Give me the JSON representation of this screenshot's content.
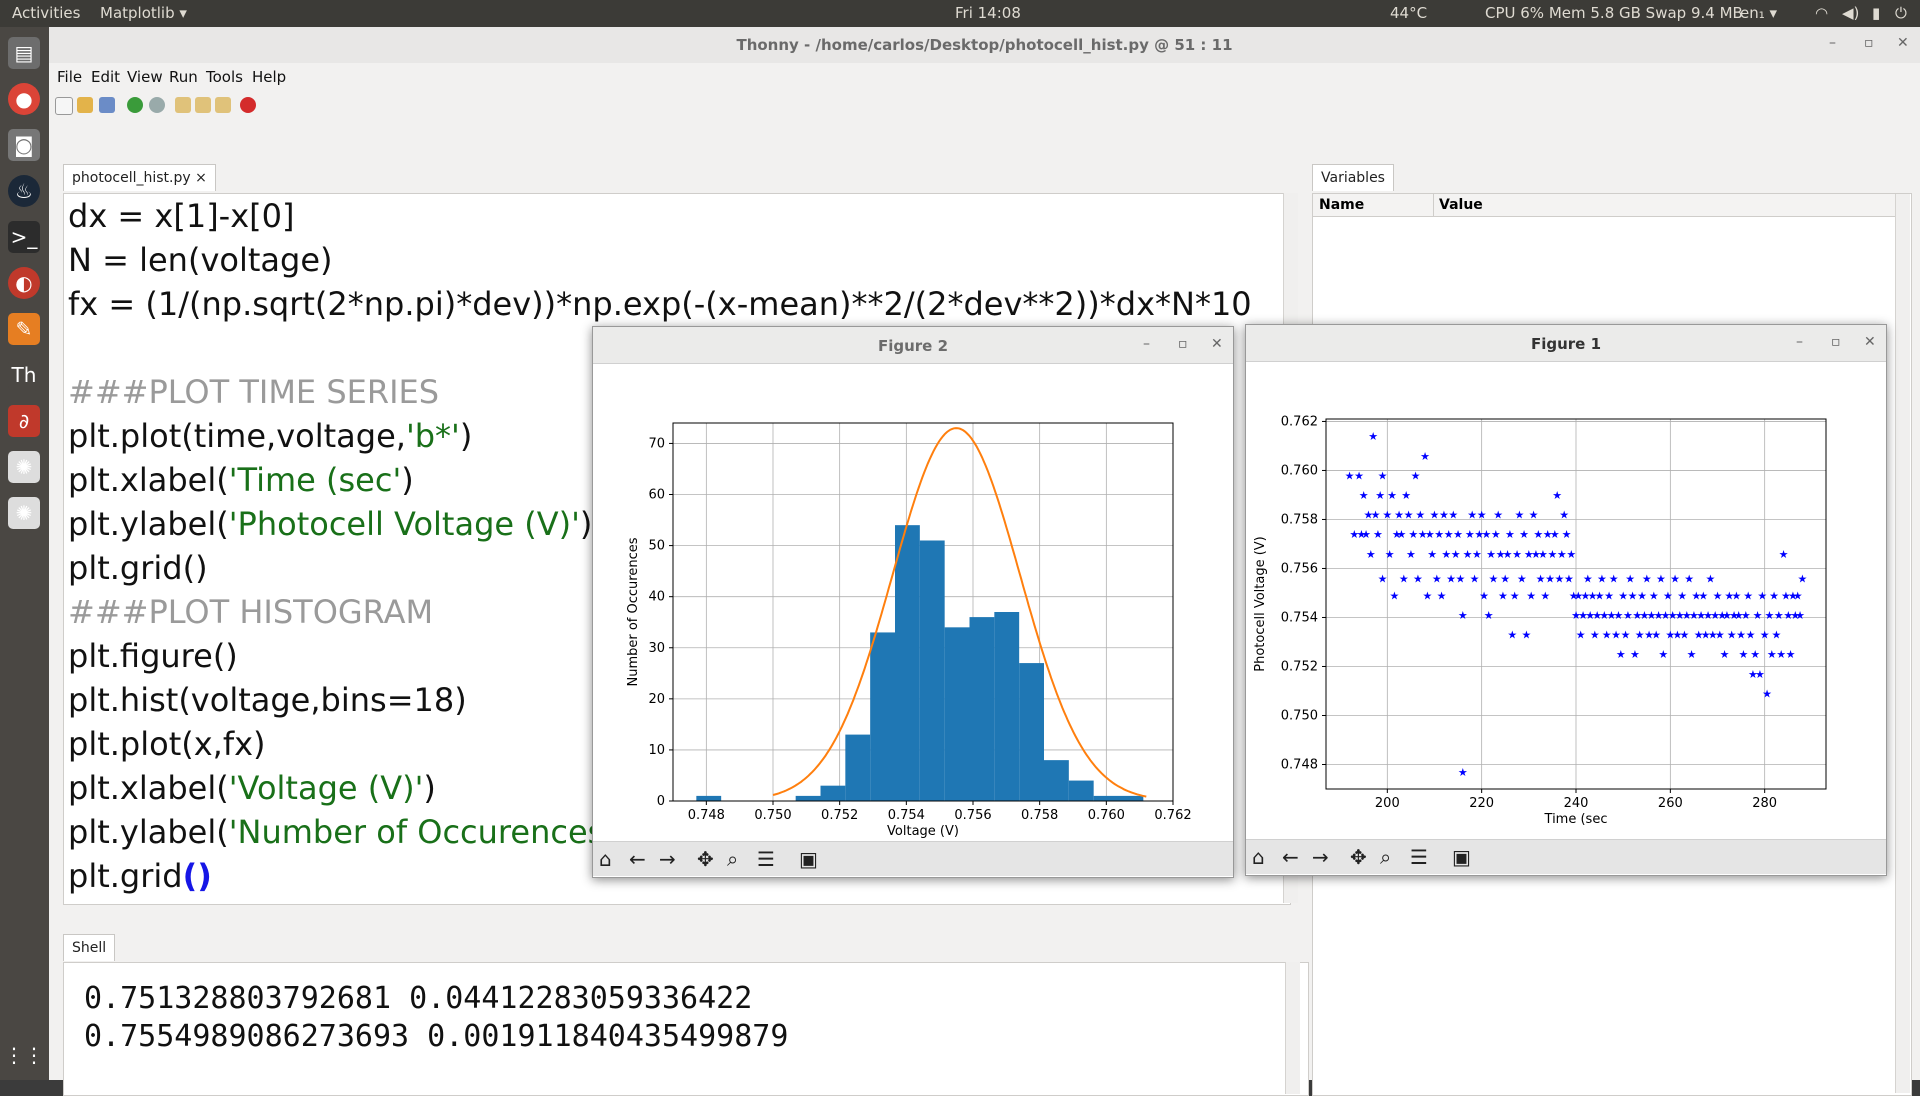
{
  "topbar": {
    "activities": "Activities",
    "app": "Matplotlib ▾",
    "clock": "Fri 14:08",
    "temp": "44°C",
    "stats": "CPU 6% Mem 5.8 GB Swap 9.4 MB",
    "lang": "en₁ ▾"
  },
  "window": {
    "title": "Thonny  -  /home/carlos/Desktop/photocell_hist.py  @  51 : 11"
  },
  "menu": [
    "File",
    "Edit",
    "View",
    "Run",
    "Tools",
    "Help"
  ],
  "editor_tab": "photocell_hist.py ×",
  "code_lines": [
    [
      {
        "t": "dx = x[1]-x[0]"
      }
    ],
    [
      {
        "t": "N = len(voltage)"
      }
    ],
    [
      {
        "t": "fx = (1/(np.sqrt(2*np.pi)*dev))*np.exp(-(x-mean)**2/(2*dev**2))*dx*N*10"
      }
    ],
    [
      {
        "t": " "
      }
    ],
    [
      {
        "t": "###PLOT TIME SERIES",
        "c": "c"
      }
    ],
    [
      {
        "t": "plt.plot(time,voltage,"
      },
      {
        "t": "'b*'",
        "c": "s"
      },
      {
        "t": ")"
      }
    ],
    [
      {
        "t": "plt.xlabel("
      },
      {
        "t": "'Time (sec'",
        "c": "s"
      },
      {
        "t": ")"
      }
    ],
    [
      {
        "t": "plt.ylabel("
      },
      {
        "t": "'Photocell Voltage (V)'",
        "c": "s"
      },
      {
        "t": ")"
      }
    ],
    [
      {
        "t": "plt.grid()"
      }
    ],
    [
      {
        "t": "###PLOT HISTOGRAM",
        "c": "c"
      }
    ],
    [
      {
        "t": "plt.figure()"
      }
    ],
    [
      {
        "t": "plt.hist(voltage,bins=18)"
      }
    ],
    [
      {
        "t": "plt.plot(x,fx)"
      }
    ],
    [
      {
        "t": "plt.xlabel("
      },
      {
        "t": "'Voltage (V)'",
        "c": "s"
      },
      {
        "t": ")"
      }
    ],
    [
      {
        "t": "plt.ylabel("
      },
      {
        "t": "'Number of Occurences'",
        "c": "s"
      },
      {
        "t": ")"
      }
    ],
    [
      {
        "t": "plt.grid"
      },
      {
        "t": "()",
        "c": "b"
      }
    ]
  ],
  "shell": {
    "tab": "Shell",
    "lines": [
      "0.751328803792681 0.04412283059336422",
      "0.7554989086273693 0.001911840435499879"
    ]
  },
  "variables": {
    "tab": "Variables",
    "col_name": "Name",
    "col_value": "Value"
  },
  "figure2": {
    "title": "Figure 2"
  },
  "figure1": {
    "title": "Figure 1"
  },
  "chart_data": [
    {
      "type": "bar",
      "title": "",
      "xlabel": "Voltage (V)",
      "ylabel": "Number of Occurences",
      "xlim": [
        0.747,
        0.762
      ],
      "ylim": [
        0,
        74
      ],
      "xticks": [
        "0.748",
        "0.750",
        "0.752",
        "0.754",
        "0.756",
        "0.758",
        "0.760",
        "0.762"
      ],
      "yticks": [
        "0",
        "10",
        "20",
        "30",
        "40",
        "50",
        "60",
        "70"
      ],
      "grid": true,
      "bin_start": 0.7477,
      "bin_width": 0.000745,
      "counts": [
        1,
        0,
        0,
        0,
        1,
        3,
        13,
        33,
        54,
        51,
        34,
        36,
        37,
        27,
        8,
        4,
        1,
        1
      ],
      "bar_color": "#1f77b4",
      "curve_color": "#ff7f0e",
      "fit": {
        "mean": 0.7554989086273693,
        "std": 0.001911840435499879,
        "peak": 73,
        "x_from": 0.75,
        "x_to": 0.7612
      }
    },
    {
      "type": "scatter",
      "title": "",
      "xlabel": "Time (sec",
      "ylabel": "Photocell Voltage (V)",
      "xlim": [
        187,
        293
      ],
      "ylim": [
        0.747,
        0.7621
      ],
      "xticks": [
        "200",
        "220",
        "240",
        "260",
        "280"
      ],
      "yticks": [
        "0.748",
        "0.750",
        "0.752",
        "0.754",
        "0.756",
        "0.758",
        "0.760",
        "0.762"
      ],
      "grid": true,
      "marker": "★",
      "color": "#0000ff",
      "points": [
        [
          192,
          0.7598
        ],
        [
          193,
          0.7574
        ],
        [
          194,
          0.7598
        ],
        [
          194.5,
          0.7574
        ],
        [
          195,
          0.759
        ],
        [
          195.5,
          0.7574
        ],
        [
          196,
          0.7582
        ],
        [
          196.5,
          0.7566
        ],
        [
          197,
          0.7614
        ],
        [
          197.5,
          0.7582
        ],
        [
          198,
          0.7574
        ],
        [
          198.5,
          0.759
        ],
        [
          199,
          0.7598
        ],
        [
          199,
          0.7556
        ],
        [
          200,
          0.7582
        ],
        [
          200.5,
          0.7566
        ],
        [
          201,
          0.759
        ],
        [
          201.5,
          0.7549
        ],
        [
          202,
          0.7574
        ],
        [
          202.5,
          0.7582
        ],
        [
          203,
          0.7574
        ],
        [
          203.5,
          0.7556
        ],
        [
          204,
          0.759
        ],
        [
          204.5,
          0.7582
        ],
        [
          205,
          0.7566
        ],
        [
          205.5,
          0.7574
        ],
        [
          206,
          0.7598
        ],
        [
          206.5,
          0.7556
        ],
        [
          207,
          0.7582
        ],
        [
          207.5,
          0.7574
        ],
        [
          208,
          0.7606
        ],
        [
          208.5,
          0.7549
        ],
        [
          209,
          0.7574
        ],
        [
          209.5,
          0.7566
        ],
        [
          210,
          0.7582
        ],
        [
          210.5,
          0.7556
        ],
        [
          211,
          0.7574
        ],
        [
          211.5,
          0.7549
        ],
        [
          212,
          0.7582
        ],
        [
          212.5,
          0.7566
        ],
        [
          213,
          0.7574
        ],
        [
          213.5,
          0.7556
        ],
        [
          214,
          0.7582
        ],
        [
          214.5,
          0.7566
        ],
        [
          215,
          0.7574
        ],
        [
          215.5,
          0.7556
        ],
        [
          216,
          0.7541
        ],
        [
          216,
          0.7477
        ],
        [
          217,
          0.7566
        ],
        [
          217.5,
          0.7574
        ],
        [
          218,
          0.7582
        ],
        [
          218.5,
          0.7556
        ],
        [
          219,
          0.7566
        ],
        [
          219.5,
          0.7574
        ],
        [
          220,
          0.7582
        ],
        [
          220.5,
          0.7549
        ],
        [
          221,
          0.7574
        ],
        [
          221.5,
          0.7541
        ],
        [
          222,
          0.7566
        ],
        [
          222.5,
          0.7556
        ],
        [
          223,
          0.7574
        ],
        [
          223.5,
          0.7582
        ],
        [
          224,
          0.7566
        ],
        [
          224.5,
          0.7549
        ],
        [
          225,
          0.7556
        ],
        [
          225.5,
          0.7566
        ],
        [
          226,
          0.7574
        ],
        [
          226.5,
          0.7533
        ],
        [
          227,
          0.7549
        ],
        [
          227.5,
          0.7566
        ],
        [
          228,
          0.7582
        ],
        [
          228.5,
          0.7556
        ],
        [
          229,
          0.7574
        ],
        [
          229.5,
          0.7533
        ],
        [
          230,
          0.7566
        ],
        [
          230.5,
          0.7549
        ],
        [
          231,
          0.7582
        ],
        [
          231.5,
          0.7566
        ],
        [
          232,
          0.7574
        ],
        [
          232.5,
          0.7556
        ],
        [
          233,
          0.7566
        ],
        [
          233.5,
          0.7549
        ],
        [
          234,
          0.7574
        ],
        [
          234.5,
          0.7556
        ],
        [
          235,
          0.7566
        ],
        [
          235.5,
          0.7574
        ],
        [
          236,
          0.759
        ],
        [
          236.5,
          0.7556
        ],
        [
          237,
          0.7566
        ],
        [
          237.5,
          0.7582
        ],
        [
          238,
          0.7574
        ],
        [
          238.5,
          0.7556
        ],
        [
          239,
          0.7566
        ],
        [
          239.5,
          0.7549
        ],
        [
          240,
          0.7541
        ],
        [
          240.5,
          0.7549
        ],
        [
          241,
          0.7533
        ],
        [
          241.5,
          0.7541
        ],
        [
          242,
          0.7549
        ],
        [
          242.5,
          0.7556
        ],
        [
          243,
          0.7541
        ],
        [
          243.5,
          0.7549
        ],
        [
          244,
          0.7533
        ],
        [
          244.5,
          0.7541
        ],
        [
          245,
          0.7549
        ],
        [
          245.5,
          0.7556
        ],
        [
          246,
          0.7541
        ],
        [
          246.5,
          0.7533
        ],
        [
          247,
          0.7549
        ],
        [
          247.5,
          0.7541
        ],
        [
          248,
          0.7556
        ],
        [
          248.5,
          0.7533
        ],
        [
          249,
          0.7541
        ],
        [
          249.5,
          0.7525
        ],
        [
          250,
          0.7549
        ],
        [
          250.5,
          0.7533
        ],
        [
          251,
          0.7541
        ],
        [
          251.5,
          0.7556
        ],
        [
          252,
          0.7549
        ],
        [
          252.5,
          0.7525
        ],
        [
          253,
          0.7541
        ],
        [
          253.5,
          0.7533
        ],
        [
          254,
          0.7549
        ],
        [
          254.5,
          0.7541
        ],
        [
          255,
          0.7556
        ],
        [
          255.5,
          0.7533
        ],
        [
          256,
          0.7541
        ],
        [
          256.5,
          0.7549
        ],
        [
          257,
          0.7533
        ],
        [
          257.5,
          0.7541
        ],
        [
          258,
          0.7556
        ],
        [
          258.5,
          0.7525
        ],
        [
          259,
          0.7541
        ],
        [
          259.5,
          0.7549
        ],
        [
          260,
          0.7533
        ],
        [
          260.5,
          0.7541
        ],
        [
          261,
          0.7556
        ],
        [
          261.5,
          0.7533
        ],
        [
          262,
          0.7541
        ],
        [
          262.5,
          0.7549
        ],
        [
          263,
          0.7533
        ],
        [
          263.5,
          0.7541
        ],
        [
          264,
          0.7556
        ],
        [
          264.5,
          0.7525
        ],
        [
          265,
          0.7541
        ],
        [
          265.5,
          0.7549
        ],
        [
          266,
          0.7533
        ],
        [
          266.5,
          0.7541
        ],
        [
          267,
          0.7549
        ],
        [
          267.5,
          0.7533
        ],
        [
          268,
          0.7541
        ],
        [
          268.5,
          0.7556
        ],
        [
          269,
          0.7533
        ],
        [
          269.5,
          0.7541
        ],
        [
          270,
          0.7549
        ],
        [
          270.5,
          0.7533
        ],
        [
          271,
          0.7541
        ],
        [
          271.5,
          0.7525
        ],
        [
          272,
          0.7541
        ],
        [
          272.5,
          0.7549
        ],
        [
          273,
          0.7533
        ],
        [
          273.5,
          0.7541
        ],
        [
          274,
          0.7549
        ],
        [
          274.5,
          0.7541
        ],
        [
          275,
          0.7533
        ],
        [
          275.5,
          0.7525
        ],
        [
          276,
          0.7541
        ],
        [
          276.5,
          0.7549
        ],
        [
          277,
          0.7533
        ],
        [
          277.5,
          0.7517
        ],
        [
          278,
          0.7525
        ],
        [
          278.5,
          0.7541
        ],
        [
          279,
          0.7517
        ],
        [
          279.5,
          0.7549
        ],
        [
          280,
          0.7533
        ],
        [
          280.5,
          0.7509
        ],
        [
          281,
          0.7541
        ],
        [
          281.5,
          0.7525
        ],
        [
          282,
          0.7549
        ],
        [
          282.5,
          0.7533
        ],
        [
          283,
          0.7541
        ],
        [
          283.5,
          0.7525
        ],
        [
          284,
          0.7566
        ],
        [
          284.5,
          0.7549
        ],
        [
          285,
          0.7541
        ],
        [
          285.5,
          0.7525
        ],
        [
          286,
          0.7549
        ],
        [
          286.5,
          0.7541
        ],
        [
          287,
          0.7549
        ],
        [
          287.5,
          0.7541
        ],
        [
          288,
          0.7556
        ]
      ]
    }
  ]
}
